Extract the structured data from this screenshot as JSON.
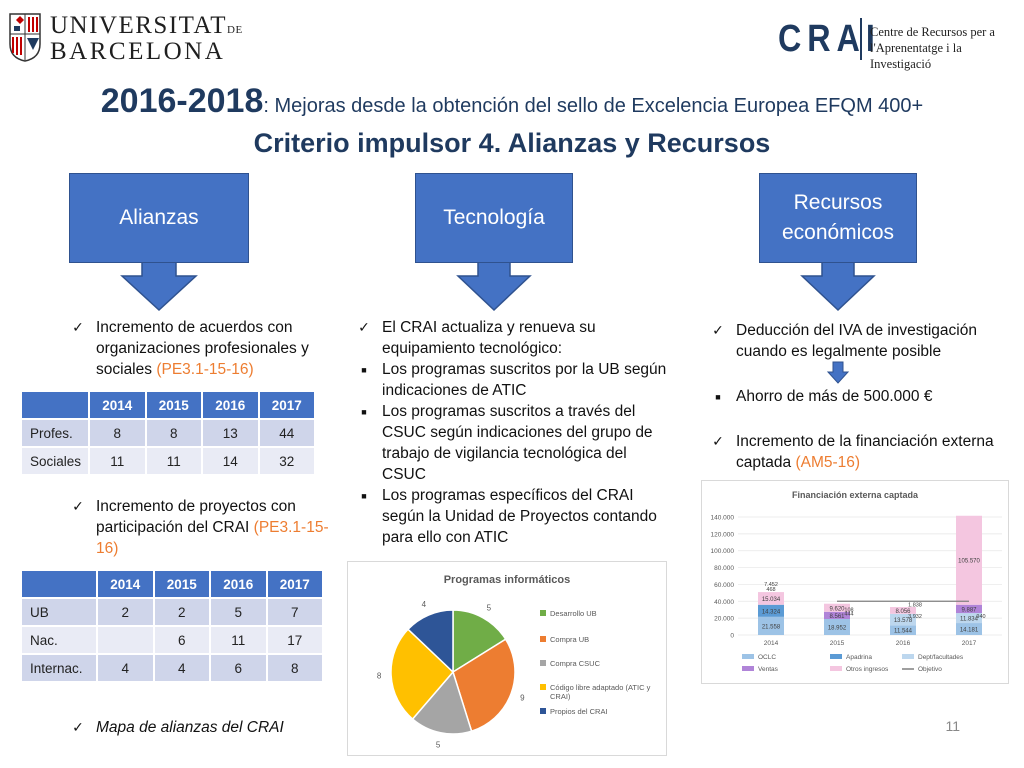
{
  "header": {
    "ub_line1": "UNIVERSITAT",
    "ub_line1_suffix": "DE",
    "ub_line2": "BARCELONA",
    "crai_mark": "CRAI",
    "crai_desc_line1": "Centre de Recursos per a",
    "crai_desc_line2": "l'Aprenentatge i la Investigació"
  },
  "title": {
    "year": "2016-2018",
    "rest": ": Mejoras desde la obtención del sello de Excelencia Europea EFQM 400+",
    "subtitle": "Criterio impulsor 4. Alianzas y Recursos"
  },
  "callouts": {
    "alianzas": "Alianzas",
    "tecnologia": "Tecnología",
    "recursos_line1": "Recursos",
    "recursos_line2": "económicos"
  },
  "alianzas": {
    "item1_text": "Incremento de acuerdos con organizaciones profesionales y sociales ",
    "item1_ref": "(PE3.1-15-16)",
    "table1": {
      "headers": [
        "",
        "2014",
        "2015",
        "2016",
        "2017"
      ],
      "rows": [
        [
          "Profes.",
          "8",
          "8",
          "13",
          "44"
        ],
        [
          "Sociales",
          "11",
          "11",
          "14",
          "32"
        ]
      ]
    },
    "item2_text": "Incremento de proyectos con participación del CRAI ",
    "item2_ref": "(PE3.1-15-16)",
    "table2": {
      "headers": [
        "",
        "2014",
        "2015",
        "2016",
        "2017"
      ],
      "rows": [
        [
          "UB",
          "2",
          "2",
          "5",
          "7"
        ],
        [
          "Nac.",
          "",
          "6",
          "11",
          "17"
        ],
        [
          "Internac.",
          "4",
          "4",
          "6",
          "8"
        ]
      ]
    },
    "item3_text": "Mapa de alianzas del CRAI"
  },
  "tecnologia": {
    "intro": "El CRAI actualiza y renueva su equipamiento tecnológico:",
    "bullet1": "Los programas suscritos por la UB según indicaciones de ATIC",
    "bullet2": "Los programas suscritos a través del CSUC según indicaciones del grupo de trabajo de vigilancia tecnológica del CSUC",
    "bullet3": "Los programas específicos del CRAI según la Unidad de Proyectos contando para ello con ATIC"
  },
  "recursos": {
    "item1": "Deducción del IVA de investigación cuando es legalmente posible",
    "item2": "Ahorro de más de 500.000 €",
    "item3_text": "Incremento de la financiación externa captada ",
    "item3_ref": "(AM5-16)"
  },
  "colors": {
    "blue": "#4472c4",
    "orange": "#ed7d31",
    "gray": "#a5a5a5",
    "gold": "#ffc000",
    "darkblue": "#2e5597",
    "green": "#70ad47"
  },
  "chart_data": [
    {
      "type": "pie",
      "title": "Programas informáticos",
      "legend_position": "right",
      "slices": [
        {
          "label": "Desarrollo UB",
          "value": 5,
          "color": "#70ad47"
        },
        {
          "label": "Compra UB",
          "value": 9,
          "color": "#ed7d31"
        },
        {
          "label": "Compra CSUC",
          "value": 5,
          "color": "#a5a5a5"
        },
        {
          "label": "Código libre adaptado (ATIC y CRAI)",
          "value": 8,
          "color": "#ffc000"
        },
        {
          "label": "Propios del CRAI",
          "value": 4,
          "color": "#2e5597"
        }
      ]
    },
    {
      "type": "bar",
      "stacked": true,
      "title": "Financiación externa captada",
      "legend_position": "bottom",
      "categories": [
        "2014",
        "2015",
        "2016",
        "2017"
      ],
      "ylim": [
        0,
        140000
      ],
      "yticks": [
        "0",
        "20.000",
        "40.000",
        "60.000",
        "80.000",
        "100.000",
        "120.000",
        "140.000"
      ],
      "series": [
        {
          "name": "OCLC",
          "color": "#9dc3e6",
          "values": [
            21558,
            18952,
            11544,
            14181
          ],
          "labels": [
            "21.558",
            "18.952",
            "11.544",
            "14.181"
          ]
        },
        {
          "name": "Apadrina",
          "color": "#5b9bd5",
          "values": [
            14324,
            0,
            0,
            0
          ],
          "labels": [
            "14.324",
            "",
            "",
            ""
          ]
        },
        {
          "name": "Dept/facultades",
          "color": "#bdd7ee",
          "values": [
            0,
            0,
            13578,
            11834
          ],
          "labels": [
            "",
            "",
            "13.578",
            "11.834"
          ]
        },
        {
          "name": "Ventas",
          "color": "#b084d8",
          "values": [
            0,
            8561,
            0,
            9887
          ],
          "labels": [
            "",
            "8.561",
            "",
            "9.887"
          ]
        },
        {
          "name": "Otros ingresos",
          "color": "#f4c6e0",
          "values": [
            15034,
            9620,
            8056,
            105570
          ],
          "labels": [
            "15.034",
            "9.620",
            "8.056",
            "105.570"
          ]
        }
      ],
      "extra_labels": [
        "7.452",
        "468",
        "108",
        "444",
        "1.838",
        "3.932",
        "940"
      ],
      "objective_line": {
        "name": "Objetivo",
        "value": 40000
      }
    }
  ],
  "page_number": "11"
}
